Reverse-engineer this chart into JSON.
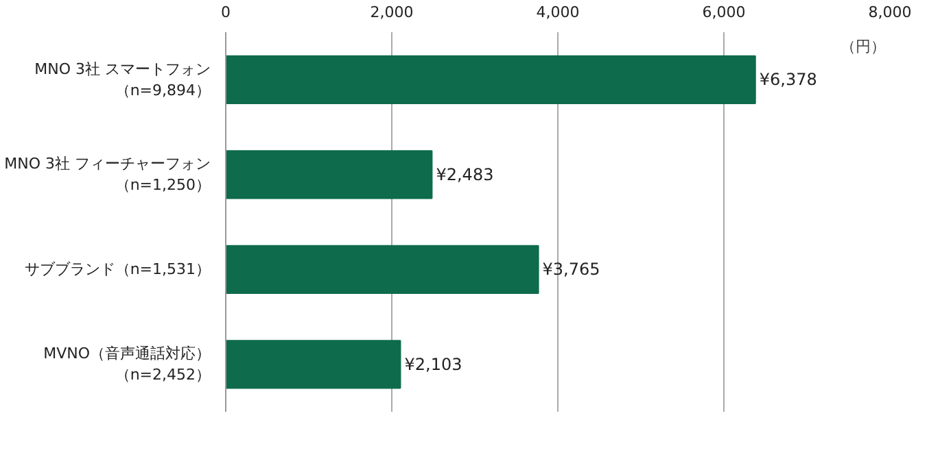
{
  "chart_data": {
    "type": "bar",
    "orientation": "horizontal",
    "categories": [
      "MNO 3社 スマートフォン（n=9,894）",
      "MNO 3社 フィーチャーフォン（n=1,250）",
      "サブブランド（n=1,531）",
      "MVNO（音声通話対応）（n=2,452）"
    ],
    "values": [
      6378,
      2483,
      3765,
      2103
    ],
    "value_labels": [
      "¥6,378",
      "¥2,483",
      "¥3,765",
      "¥2,103"
    ],
    "color": "#0e6b4b",
    "xlim": [
      0,
      8000
    ],
    "xticks": [
      {
        "value": 0,
        "label": "0"
      },
      {
        "value": 2000,
        "label": "2,000"
      },
      {
        "value": 4000,
        "label": "4,000"
      },
      {
        "value": 6000,
        "label": "6,000"
      },
      {
        "value": 8000,
        "label": "8,000"
      }
    ],
    "xlabel": "（円）",
    "grid": "x"
  }
}
